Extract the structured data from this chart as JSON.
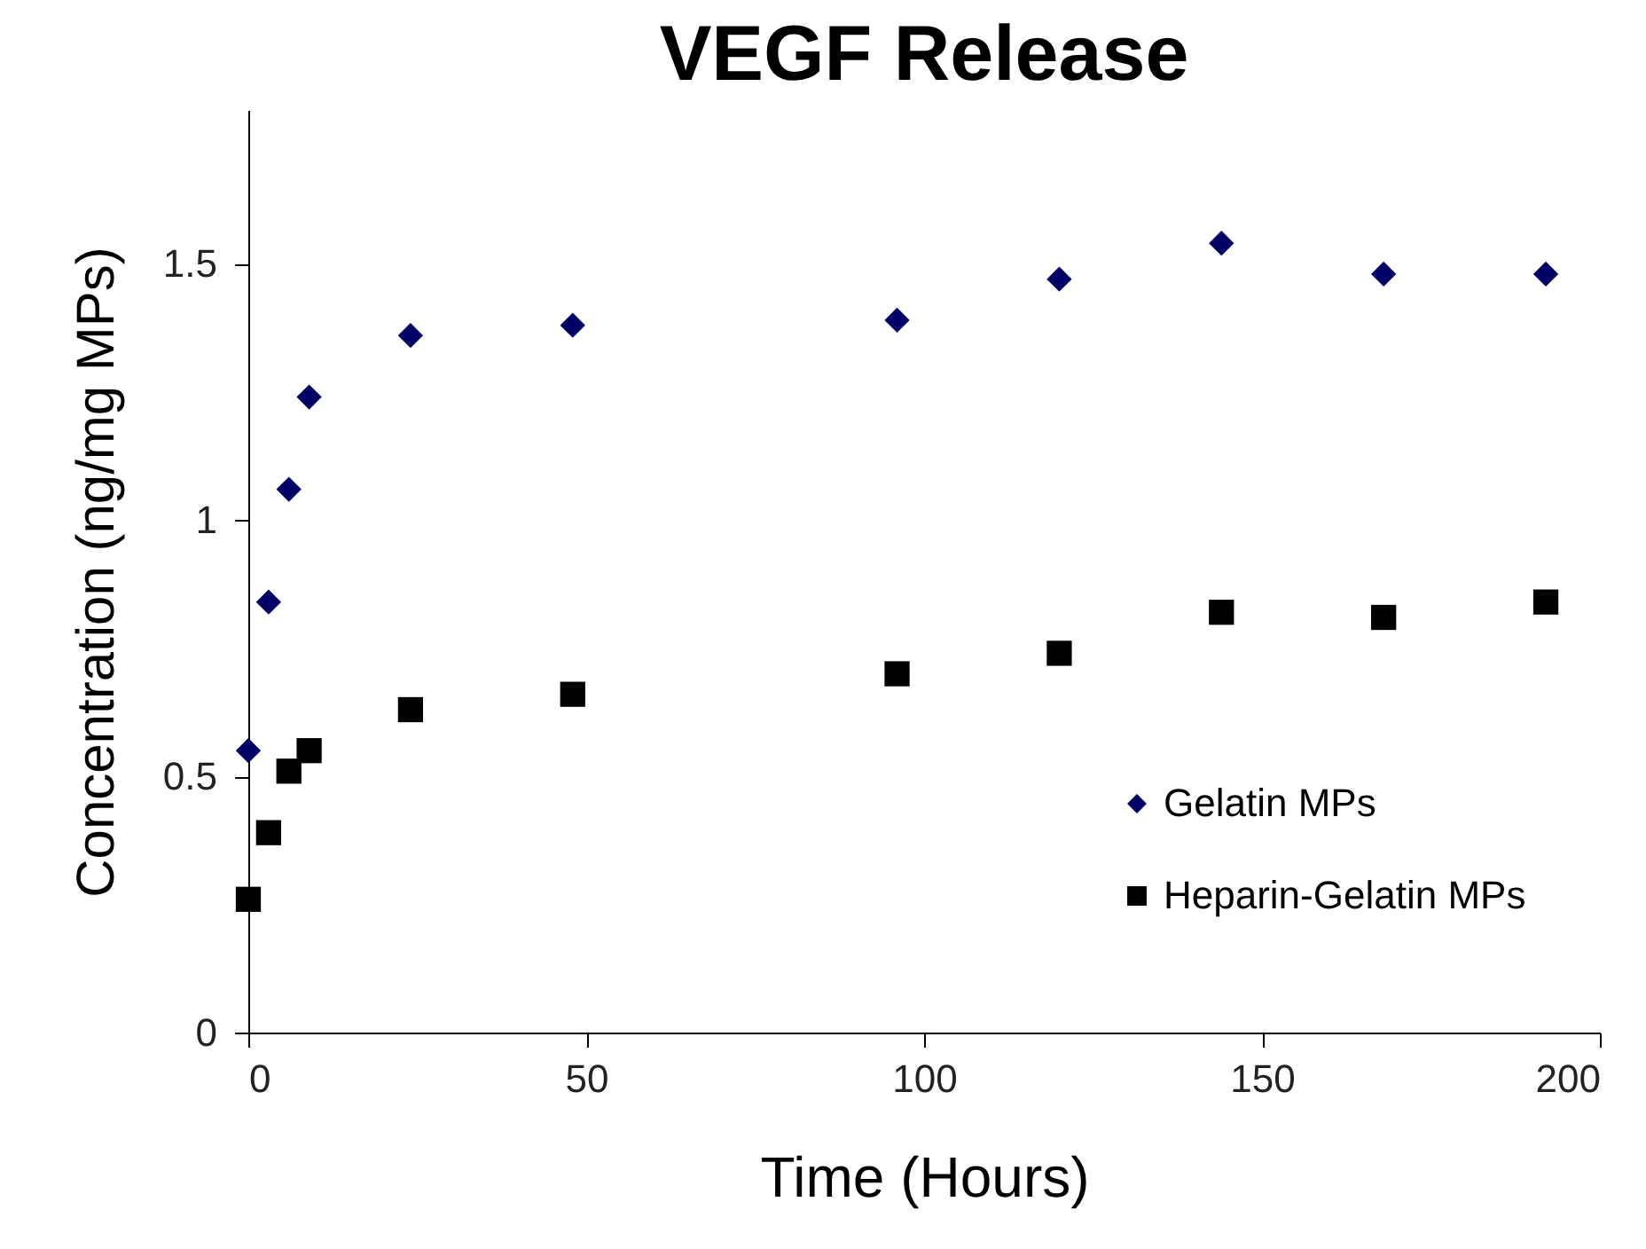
{
  "chart_data": {
    "type": "scatter",
    "title": "VEGF Release",
    "xlabel": "Time (Hours)",
    "ylabel": "Concentration (ng/mg MPs)",
    "x": [
      0,
      3,
      6,
      9,
      24,
      48,
      96,
      120,
      144,
      168,
      192
    ],
    "series": [
      {
        "name": "Gelatin MPs",
        "color": "#000066",
        "marker": "diamond",
        "values": [
          0.55,
          0.84,
          1.06,
          1.24,
          1.36,
          1.38,
          1.39,
          1.47,
          1.54,
          1.48,
          1.48
        ]
      },
      {
        "name": "Heparin-Gelatin MPs",
        "color": "#000000",
        "marker": "square",
        "values": [
          0.26,
          0.39,
          0.51,
          0.55,
          0.63,
          0.66,
          0.7,
          0.74,
          0.82,
          0.81,
          0.84
        ]
      }
    ],
    "xlim": [
      0,
      200
    ],
    "xticks": [
      0,
      50,
      100,
      150,
      200
    ],
    "ylim": [
      0,
      1.8
    ],
    "yticks": [
      0,
      0.5,
      1,
      1.5
    ],
    "grid": false,
    "legend": "right"
  }
}
